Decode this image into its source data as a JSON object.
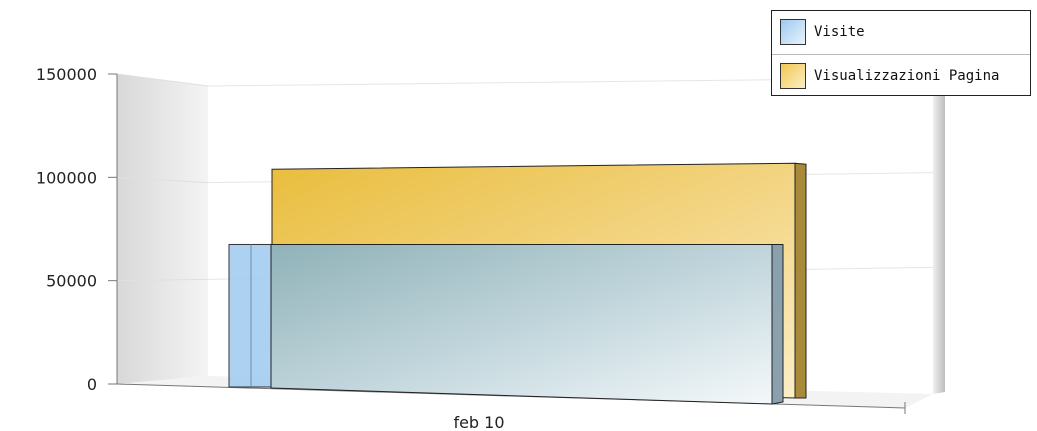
{
  "chart_data": {
    "type": "bar",
    "categories": [
      "feb 10"
    ],
    "series": [
      {
        "name": "Visite",
        "values": [
          68000
        ],
        "color": "#9ec9ee"
      },
      {
        "name": "Visualizzazioni Pagina",
        "values": [
          102000
        ],
        "color": "#f2c84f"
      }
    ],
    "y_ticks": [
      "0",
      "50000",
      "100000",
      "150000"
    ],
    "ylim": [
      0,
      150000
    ],
    "grid": true,
    "legend_position": "top-right",
    "style": "3d"
  }
}
